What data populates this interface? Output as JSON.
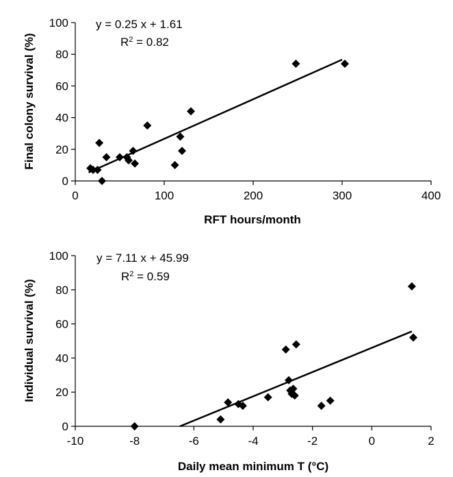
{
  "chart_data": [
    {
      "type": "scatter",
      "xlabel": "RFT hours/month",
      "ylabel": "Final colony survival (%)",
      "xlim": [
        0,
        400
      ],
      "ylim": [
        0,
        100
      ],
      "xticks": [
        "0",
        "100",
        "200",
        "300",
        "400"
      ],
      "yticks": [
        "0",
        "20",
        "40",
        "60",
        "80",
        "100"
      ],
      "equation": "y = 0.25 x + 1.61",
      "r2_prefix": "R",
      "r2_sup": "2",
      "r2_value": " = 0.82",
      "fit": {
        "slope": 0.25,
        "intercept": 1.61,
        "x_range": [
          15,
          300
        ]
      },
      "points": [
        {
          "x": 17,
          "y": 8
        },
        {
          "x": 20,
          "y": 7
        },
        {
          "x": 25,
          "y": 7
        },
        {
          "x": 27,
          "y": 24
        },
        {
          "x": 30,
          "y": 0
        },
        {
          "x": 35,
          "y": 15
        },
        {
          "x": 50,
          "y": 15
        },
        {
          "x": 58,
          "y": 15
        },
        {
          "x": 60,
          "y": 13
        },
        {
          "x": 65,
          "y": 19
        },
        {
          "x": 67,
          "y": 11
        },
        {
          "x": 81,
          "y": 35
        },
        {
          "x": 112,
          "y": 10
        },
        {
          "x": 118,
          "y": 28
        },
        {
          "x": 120,
          "y": 19
        },
        {
          "x": 130,
          "y": 44
        },
        {
          "x": 248,
          "y": 74
        },
        {
          "x": 303,
          "y": 74
        }
      ]
    },
    {
      "type": "scatter",
      "xlabel": "Daily mean minimum T (°C)",
      "ylabel": "Individual survival (%)",
      "xlim": [
        -10,
        2
      ],
      "ylim": [
        0,
        100
      ],
      "xticks": [
        "-10",
        "-8",
        "-6",
        "-4",
        "-2",
        "0",
        "2"
      ],
      "yticks": [
        "0",
        "20",
        "40",
        "60",
        "80",
        "100"
      ],
      "equation": "y = 7.11 x + 45.99",
      "r2_prefix": "R",
      "r2_sup": "2",
      "r2_value": " = 0.59",
      "fit": {
        "slope": 7.11,
        "intercept": 45.99,
        "x_range": [
          -6.47,
          1.35
        ]
      },
      "points": [
        {
          "x": -8.0,
          "y": 0
        },
        {
          "x": -5.1,
          "y": 4
        },
        {
          "x": -4.85,
          "y": 14
        },
        {
          "x": -4.5,
          "y": 13
        },
        {
          "x": -4.35,
          "y": 12
        },
        {
          "x": -3.5,
          "y": 17
        },
        {
          "x": -2.9,
          "y": 45
        },
        {
          "x": -2.8,
          "y": 27
        },
        {
          "x": -2.75,
          "y": 21
        },
        {
          "x": -2.7,
          "y": 19
        },
        {
          "x": -2.65,
          "y": 22
        },
        {
          "x": -2.6,
          "y": 18
        },
        {
          "x": -2.55,
          "y": 48
        },
        {
          "x": -1.7,
          "y": 12
        },
        {
          "x": -1.4,
          "y": 15
        },
        {
          "x": 1.35,
          "y": 82
        },
        {
          "x": 1.4,
          "y": 52
        }
      ]
    }
  ]
}
